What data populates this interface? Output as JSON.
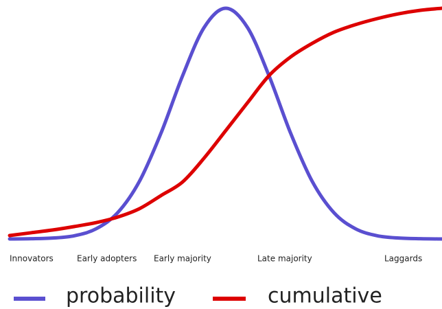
{
  "chart_data": {
    "type": "line",
    "x": [
      0,
      5,
      10,
      15,
      20,
      25,
      30,
      35,
      40,
      45,
      50,
      55,
      60,
      65,
      70,
      75,
      80,
      85,
      90,
      95,
      100
    ],
    "xlim": [
      0,
      100
    ],
    "ylim": [
      0,
      100
    ],
    "categories": [
      "Innovators",
      "Early adopters",
      "Early majority",
      "Late majority",
      "Laggards"
    ],
    "series": [
      {
        "name": "probability",
        "color": "#5a4fd0",
        "values": [
          0.0,
          0.1,
          0.4,
          1.4,
          4.4,
          11.4,
          24.9,
          45.8,
          70.7,
          91.7,
          100,
          91.7,
          70.7,
          45.8,
          24.9,
          11.4,
          4.4,
          1.4,
          0.4,
          0.1,
          0.0
        ]
      },
      {
        "name": "cumulative",
        "color": "#dd0000",
        "values": [
          1.5,
          2.7,
          3.9,
          5.4,
          7.1,
          9.5,
          13.1,
          18.8,
          24.7,
          35.1,
          47,
          59,
          70.8,
          78.9,
          84.8,
          89.6,
          92.9,
          95.5,
          97.6,
          99.1,
          100
        ]
      }
    ]
  }
}
